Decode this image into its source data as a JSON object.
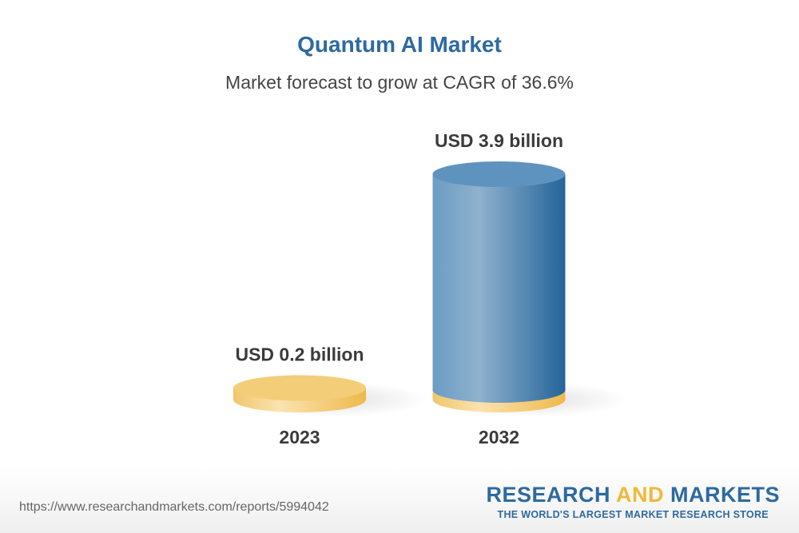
{
  "chart_data": {
    "type": "bar",
    "title": "Quantum AI Market",
    "subtitle": "Market forecast to grow at CAGR of 36.6%",
    "categories": [
      "2023",
      "2032"
    ],
    "values": [
      0.2,
      3.9
    ],
    "data_labels": [
      "USD 0.2 billion",
      "USD 3.9 billion"
    ],
    "unit": "USD billion",
    "style": "3d-cylinder",
    "colors": {
      "gold": "#f3cc78",
      "blue": "#4a84b4"
    }
  },
  "footer": {
    "url": "https://www.researchandmarkets.com/reports/5994042",
    "logo_part1": "RESEARCH ",
    "logo_part2": "AND",
    "logo_part3": " MARKETS",
    "tagline": "THE WORLD'S LARGEST MARKET RESEARCH STORE"
  }
}
